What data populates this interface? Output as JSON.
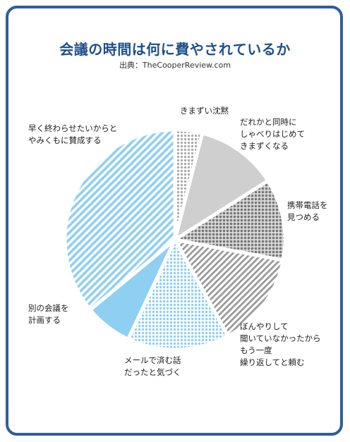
{
  "title": "会議の時間は何に費やされているか",
  "source": "出典：TheCooperReview.com",
  "colors": {
    "border": "#2f5e9a",
    "title": "#1f4f8c",
    "blue": "#8fd0f2",
    "gray": "#9a9a9a"
  },
  "chart_data": {
    "type": "pie",
    "title": "会議の時間は何に費やされているか",
    "slices": [
      {
        "label": "きまずい沈黙",
        "value": 4,
        "color": "#9a9a9a",
        "pattern": "dots-sparse"
      },
      {
        "label": "だれかと同時にしゃべりはじめてきまずくなる",
        "value": 12,
        "color": "#9a9a9a",
        "pattern": "solid-light"
      },
      {
        "label": "携帯電話を見つめる",
        "value": 12,
        "color": "#8a8a8a",
        "pattern": "dots-dense"
      },
      {
        "label": "ぼんやりして聞いていなかったからもう一度繰り返してと頼む",
        "value": 14,
        "color": "#9a9a9a",
        "pattern": "stripes"
      },
      {
        "label": "メールで済む話だったと気づく",
        "value": 15,
        "color": "#8fd0f2",
        "pattern": "dots-dense"
      },
      {
        "label": "別の会議を計画する",
        "value": 7,
        "color": "#8fd0f2",
        "pattern": "solid"
      },
      {
        "label": "早く終わらせたいからとやみくもに賛成する",
        "value": 36,
        "color": "#8fd0f2",
        "pattern": "stripes"
      }
    ]
  },
  "labels": [
    {
      "lines": [
        "きまずい沈黙"
      ]
    },
    {
      "lines": [
        "だれかと同時に",
        "しゃべりはじめて",
        "きまずくなる"
      ]
    },
    {
      "lines": [
        "携帯電話を",
        "見つめる"
      ]
    },
    {
      "lines": [
        "ぼんやりして",
        "聞いていなかったから",
        "もう一度",
        "繰り返してと頼む"
      ]
    },
    {
      "lines": [
        "メールで済む話",
        "だったと気づく"
      ]
    },
    {
      "lines": [
        "別の会議を",
        "計画する"
      ]
    },
    {
      "lines": [
        "早く終わらせたいからと",
        "やみくもに賛成する"
      ]
    }
  ]
}
